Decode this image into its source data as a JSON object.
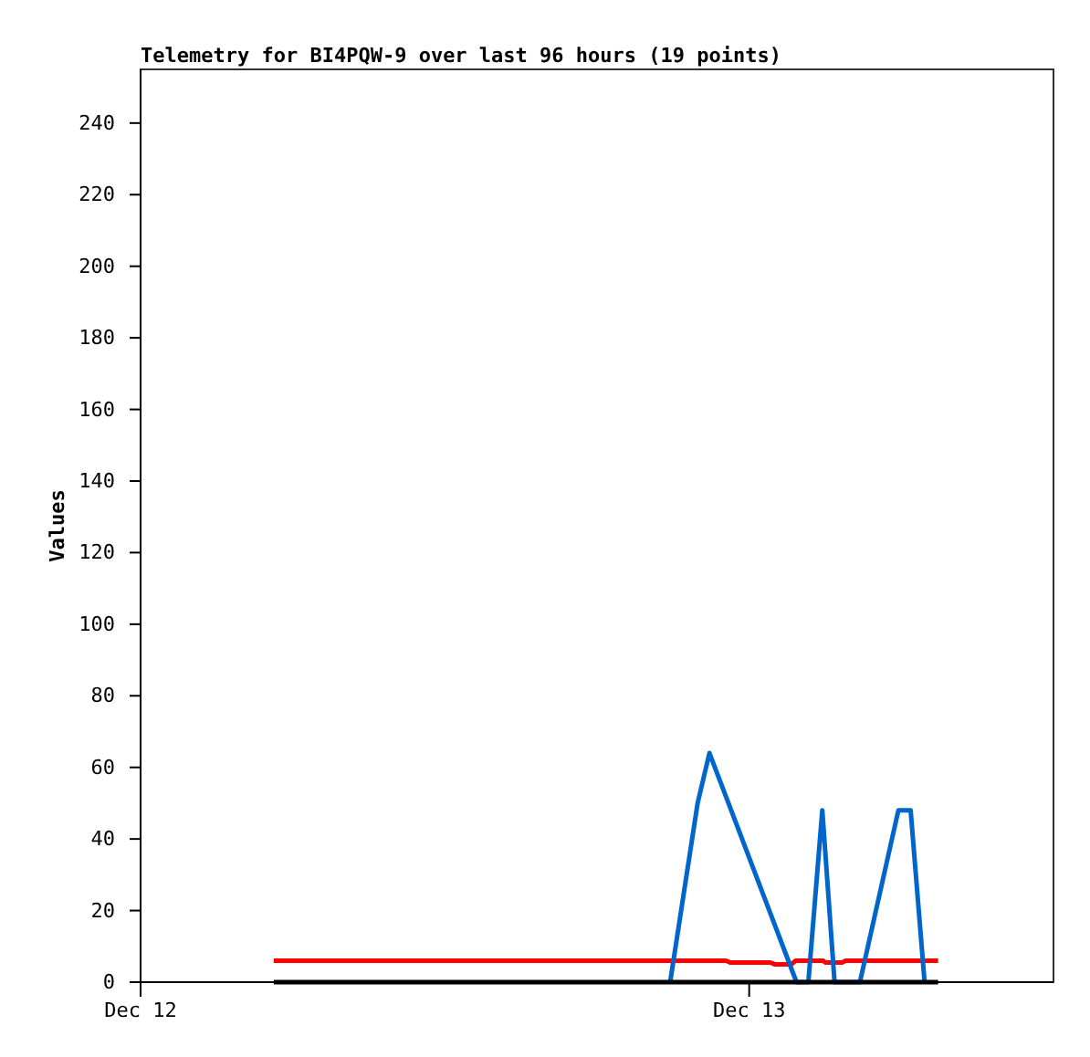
{
  "chart_data": {
    "type": "line",
    "title": "Telemetry for BI4PQW-9 over last 96 hours (19 points)",
    "ylabel": "Values",
    "xlim": [
      "--12-12T00:00",
      "--12-13T12:00"
    ],
    "xticks": [
      {
        "value": "--12-12T00:00",
        "label": "Dec 12"
      },
      {
        "value": "--12-13T00:00",
        "label": "Dec 13"
      }
    ],
    "ylim": [
      0,
      255
    ],
    "yticks": [
      0,
      20,
      40,
      60,
      80,
      100,
      120,
      140,
      160,
      180,
      200,
      220,
      240
    ],
    "grid": false,
    "marker": "none",
    "line_style": "solid",
    "series": [
      {
        "color": "#ff0000",
        "x": [
          "--12-12T05:15",
          "--12-12T23:05",
          "--12-12T23:15",
          "--12-13T00:50",
          "--12-13T01:00",
          "--12-13T01:40",
          "--12-13T01:50",
          "--12-13T02:55",
          "--12-13T03:00",
          "--12-13T03:40",
          "--12-13T03:48",
          "--12-13T07:27"
        ],
        "values": [
          6,
          6,
          5.5,
          5.5,
          5,
          5,
          6,
          6,
          5.5,
          5.5,
          6,
          6
        ]
      },
      {
        "color": "#0066cc",
        "x": [
          "--12-12T20:53",
          "--12-12T21:58",
          "--12-12T22:26",
          "--12-13T01:52",
          "--12-13T02:20",
          "--12-13T02:53",
          "--12-13T03:22",
          "--12-13T04:22",
          "--12-13T05:53",
          "--12-13T06:22",
          "--12-13T06:55"
        ],
        "values": [
          0,
          50,
          64,
          0,
          0,
          48,
          0,
          0,
          48,
          48,
          0
        ]
      },
      {
        "color": "#000000",
        "x": [
          "--12-12T05:15",
          "--12-13T07:27"
        ],
        "values": [
          0,
          0
        ]
      }
    ]
  }
}
